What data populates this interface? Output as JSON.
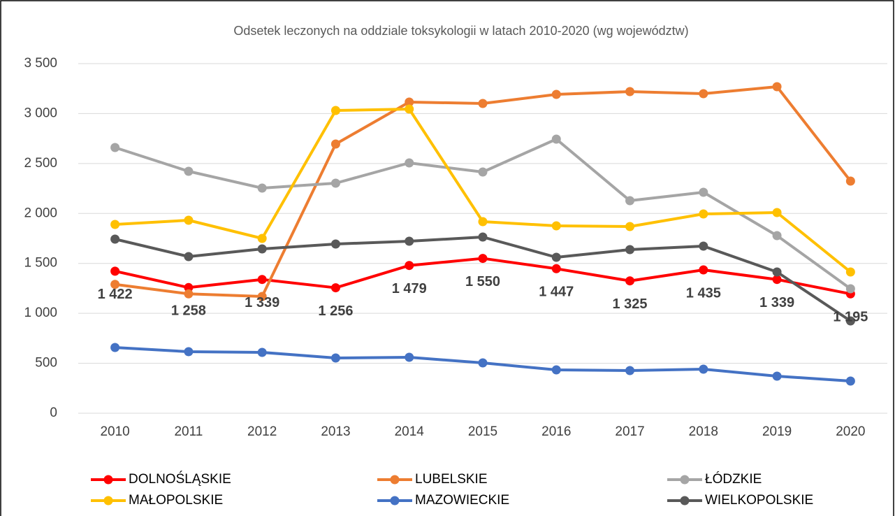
{
  "chart_data": {
    "type": "line",
    "title": "Odsetek leczonych na oddziale toksykologii w latach 2010-2020 (wg województw)",
    "categories": [
      "2010",
      "2011",
      "2012",
      "2013",
      "2014",
      "2015",
      "2016",
      "2017",
      "2018",
      "2019",
      "2020"
    ],
    "series": [
      {
        "name": "DOLNOŚLĄSKIE",
        "color": "#ff0000",
        "values": [
          1422,
          1258,
          1339,
          1256,
          1479,
          1550,
          1447,
          1325,
          1435,
          1339,
          1195
        ],
        "value_labels": [
          "1 422",
          "1 258",
          "1 339",
          "1 256",
          "1 479",
          "1 550",
          "1 447",
          "1 325",
          "1 435",
          "1 339",
          "1 195"
        ]
      },
      {
        "name": "LUBELSKIE",
        "color": "#ed7d31",
        "values": [
          1290,
          1195,
          1169,
          2695,
          3115,
          3101,
          3192,
          3220,
          3199,
          3269,
          2324
        ]
      },
      {
        "name": "ŁÓDZKIE",
        "color": "#a5a5a5",
        "values": [
          2660,
          2422,
          2254,
          2303,
          2506,
          2415,
          2744,
          2128,
          2212,
          1778,
          1246
        ]
      },
      {
        "name": "MAŁOPOLSKIE",
        "color": "#ffc000",
        "values": [
          1890,
          1932,
          1750,
          3031,
          3045,
          1918,
          1876,
          1869,
          1995,
          2009,
          1414
        ]
      },
      {
        "name": "MAZOWIECKIE",
        "color": "#4472c4",
        "values": [
          658,
          616,
          609,
          553,
          560,
          504,
          434,
          427,
          441,
          371,
          322
        ]
      },
      {
        "name": "WIELKOPOLSKIE",
        "color": "#595959",
        "values": [
          1743,
          1568,
          1645,
          1694,
          1722,
          1764,
          1561,
          1638,
          1673,
          1414,
          924
        ]
      }
    ],
    "ylim": [
      0,
      3500
    ],
    "yticks": [
      0,
      500,
      {
        "value": 1000,
        "label": "1 000"
      },
      {
        "value": 1500,
        "label": "1 500"
      },
      {
        "value": 2000,
        "label": "2 000"
      },
      {
        "value": 2500,
        "label": "2 500"
      },
      {
        "value": 3000,
        "label": "3 000"
      },
      {
        "value": 3500,
        "label": "3 500"
      }
    ],
    "grid": true,
    "legend": "bottom"
  }
}
